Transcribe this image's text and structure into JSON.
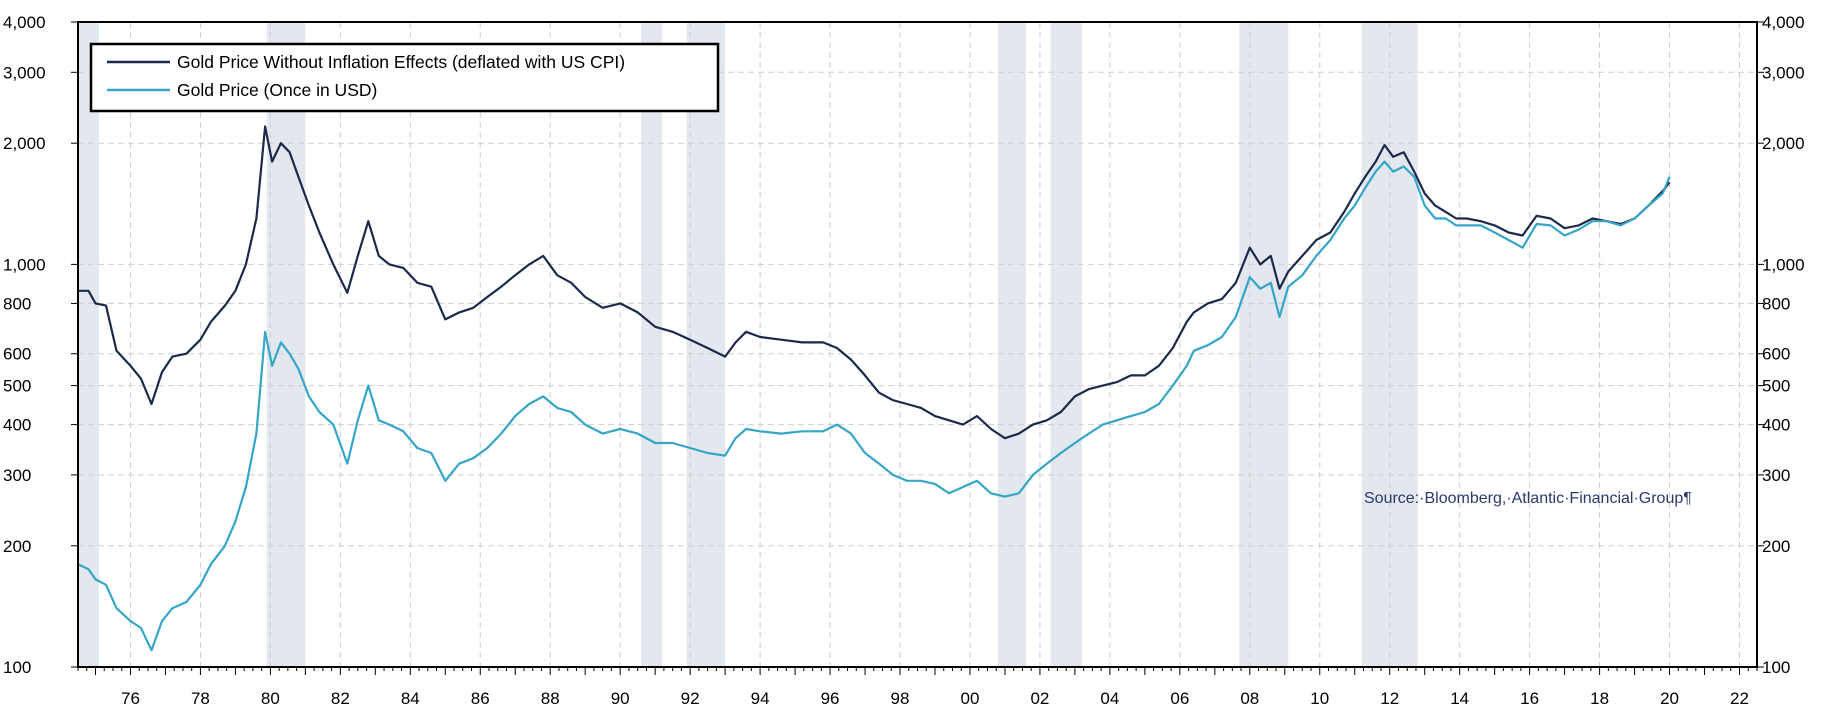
{
  "colors": {
    "real_series": "#1b2a4a",
    "nominal_series": "#35a5c8",
    "recession_band": "#e3e7ee",
    "grid": "#cfcfcf",
    "frame": "#000000",
    "source_text": "#2a3a6a"
  },
  "chart_data": {
    "type": "line",
    "title": "",
    "xlabel": "",
    "ylabel": "",
    "scale": "log",
    "ylim": [
      100,
      4000
    ],
    "xlim": [
      1974.5,
      2022.5
    ],
    "grid": true,
    "legend_placement": "top-left",
    "y_ticks": [
      100,
      200,
      300,
      400,
      500,
      600,
      800,
      1000,
      2000,
      3000,
      4000
    ],
    "y_tick_labels": [
      "100",
      "200",
      "300",
      "400",
      "500",
      "600",
      "800",
      "1,000",
      "2,000",
      "3,000",
      "4,000"
    ],
    "x_ticks": [
      1976,
      1978,
      1980,
      1982,
      1984,
      1986,
      1988,
      1990,
      1992,
      1994,
      1996,
      1998,
      2000,
      2002,
      2004,
      2006,
      2008,
      2010,
      2012,
      2014,
      2016,
      2018,
      2020,
      2022
    ],
    "x_tick_labels": [
      "76",
      "78",
      "80",
      "82",
      "84",
      "86",
      "88",
      "90",
      "92",
      "94",
      "96",
      "98",
      "00",
      "02",
      "04",
      "06",
      "08",
      "10",
      "12",
      "14",
      "16",
      "18",
      "20",
      "22"
    ],
    "recession_bands": [
      [
        1974.5,
        1975.1
      ],
      [
        1979.9,
        1981.0
      ],
      [
        1990.6,
        1991.2
      ],
      [
        1991.9,
        1993.0
      ],
      [
        2000.8,
        2001.6
      ],
      [
        2002.3,
        2003.2
      ],
      [
        2007.7,
        2009.1
      ],
      [
        2011.2,
        2012.8
      ]
    ],
    "source_note": "Source:·Bloomberg,·Atlantic·Financial·Group¶",
    "series": [
      {
        "name": "Gold Price Without Inflation Effects (deflated with US CPI)",
        "color": "#1b2a4a",
        "x": [
          1974.5,
          1974.8,
          1975.0,
          1975.3,
          1975.6,
          1976.0,
          1976.3,
          1976.6,
          1976.9,
          1977.2,
          1977.6,
          1978.0,
          1978.3,
          1978.7,
          1979.0,
          1979.3,
          1979.6,
          1979.85,
          1980.05,
          1980.3,
          1980.55,
          1980.8,
          1981.1,
          1981.4,
          1981.8,
          1982.2,
          1982.5,
          1982.8,
          1983.1,
          1983.4,
          1983.8,
          1984.2,
          1984.6,
          1985.0,
          1985.4,
          1985.8,
          1986.2,
          1986.6,
          1987.0,
          1987.4,
          1987.8,
          1988.2,
          1988.6,
          1989.0,
          1989.5,
          1990.0,
          1990.5,
          1991.0,
          1991.5,
          1992.0,
          1992.5,
          1993.0,
          1993.3,
          1993.6,
          1994.0,
          1994.6,
          1995.2,
          1995.8,
          1996.2,
          1996.6,
          1997.0,
          1997.4,
          1997.8,
          1998.2,
          1998.6,
          1999.0,
          1999.4,
          1999.8,
          2000.2,
          2000.6,
          2001.0,
          2001.4,
          2001.8,
          2002.2,
          2002.6,
          2003.0,
          2003.4,
          2003.8,
          2004.2,
          2004.6,
          2005.0,
          2005.4,
          2005.8,
          2006.2,
          2006.4,
          2006.8,
          2007.2,
          2007.6,
          2008.0,
          2008.3,
          2008.6,
          2008.85,
          2009.1,
          2009.5,
          2009.9,
          2010.3,
          2010.7,
          2011.0,
          2011.3,
          2011.6,
          2011.85,
          2012.1,
          2012.4,
          2012.7,
          2013.0,
          2013.3,
          2013.6,
          2013.9,
          2014.2,
          2014.6,
          2015.0,
          2015.4,
          2015.8,
          2016.2,
          2016.6,
          2017.0,
          2017.4,
          2017.8,
          2018.2,
          2018.6,
          2019.0,
          2019.4,
          2019.8,
          2020.0
        ],
        "values": [
          860,
          860,
          800,
          790,
          610,
          560,
          520,
          450,
          540,
          590,
          600,
          650,
          720,
          790,
          860,
          1000,
          1300,
          2200,
          1800,
          2000,
          1900,
          1650,
          1400,
          1200,
          1000,
          850,
          1050,
          1280,
          1050,
          1000,
          980,
          900,
          880,
          730,
          760,
          780,
          830,
          880,
          940,
          1000,
          1050,
          940,
          900,
          830,
          780,
          800,
          760,
          700,
          680,
          650,
          620,
          590,
          640,
          680,
          660,
          650,
          640,
          640,
          620,
          580,
          530,
          480,
          460,
          450,
          440,
          420,
          410,
          400,
          420,
          390,
          370,
          380,
          400,
          410,
          430,
          470,
          490,
          500,
          510,
          530,
          530,
          560,
          620,
          720,
          760,
          800,
          820,
          900,
          1100,
          1000,
          1050,
          870,
          960,
          1050,
          1150,
          1200,
          1350,
          1500,
          1650,
          1800,
          1980,
          1850,
          1900,
          1700,
          1500,
          1400,
          1350,
          1300,
          1300,
          1280,
          1250,
          1200,
          1180,
          1320,
          1300,
          1230,
          1250,
          1300,
          1280,
          1260,
          1300,
          1400,
          1520,
          1600
        ]
      },
      {
        "name": "Gold Price (Once in USD)",
        "color": "#35a5c8",
        "x": [
          1974.5,
          1974.8,
          1975.0,
          1975.3,
          1975.6,
          1976.0,
          1976.3,
          1976.6,
          1976.9,
          1977.2,
          1977.6,
          1978.0,
          1978.3,
          1978.7,
          1979.0,
          1979.3,
          1979.6,
          1979.85,
          1980.05,
          1980.3,
          1980.55,
          1980.8,
          1981.1,
          1981.4,
          1981.8,
          1982.2,
          1982.5,
          1982.8,
          1983.1,
          1983.4,
          1983.8,
          1984.2,
          1984.6,
          1985.0,
          1985.4,
          1985.8,
          1986.2,
          1986.6,
          1987.0,
          1987.4,
          1987.8,
          1988.2,
          1988.6,
          1989.0,
          1989.5,
          1990.0,
          1990.5,
          1991.0,
          1991.5,
          1992.0,
          1992.5,
          1993.0,
          1993.3,
          1993.6,
          1994.0,
          1994.6,
          1995.2,
          1995.8,
          1996.2,
          1996.6,
          1997.0,
          1997.4,
          1997.8,
          1998.2,
          1998.6,
          1999.0,
          1999.4,
          1999.8,
          2000.2,
          2000.6,
          2001.0,
          2001.4,
          2001.8,
          2002.2,
          2002.6,
          2003.0,
          2003.4,
          2003.8,
          2004.2,
          2004.6,
          2005.0,
          2005.4,
          2005.8,
          2006.2,
          2006.4,
          2006.8,
          2007.2,
          2007.6,
          2008.0,
          2008.3,
          2008.6,
          2008.85,
          2009.1,
          2009.5,
          2009.9,
          2010.3,
          2010.7,
          2011.0,
          2011.3,
          2011.6,
          2011.85,
          2012.1,
          2012.4,
          2012.7,
          2013.0,
          2013.3,
          2013.6,
          2013.9,
          2014.2,
          2014.6,
          2015.0,
          2015.4,
          2015.8,
          2016.2,
          2016.6,
          2017.0,
          2017.4,
          2017.8,
          2018.2,
          2018.6,
          2019.0,
          2019.4,
          2019.8,
          2020.0
        ],
        "values": [
          180,
          175,
          165,
          160,
          140,
          130,
          125,
          110,
          130,
          140,
          145,
          160,
          180,
          200,
          230,
          280,
          380,
          680,
          560,
          640,
          600,
          550,
          470,
          430,
          400,
          320,
          410,
          500,
          410,
          400,
          385,
          350,
          340,
          290,
          320,
          330,
          350,
          380,
          420,
          450,
          470,
          440,
          430,
          400,
          380,
          390,
          380,
          360,
          360,
          350,
          340,
          335,
          370,
          390,
          385,
          380,
          385,
          385,
          400,
          380,
          340,
          320,
          300,
          290,
          290,
          285,
          270,
          280,
          290,
          270,
          265,
          270,
          300,
          320,
          340,
          360,
          380,
          400,
          410,
          420,
          430,
          450,
          500,
          560,
          610,
          630,
          660,
          740,
          930,
          870,
          900,
          740,
          880,
          940,
          1050,
          1150,
          1300,
          1400,
          1550,
          1700,
          1800,
          1700,
          1750,
          1650,
          1400,
          1300,
          1300,
          1250,
          1250,
          1250,
          1200,
          1150,
          1100,
          1260,
          1250,
          1180,
          1220,
          1280,
          1280,
          1250,
          1300,
          1400,
          1500,
          1650
        ]
      }
    ]
  }
}
